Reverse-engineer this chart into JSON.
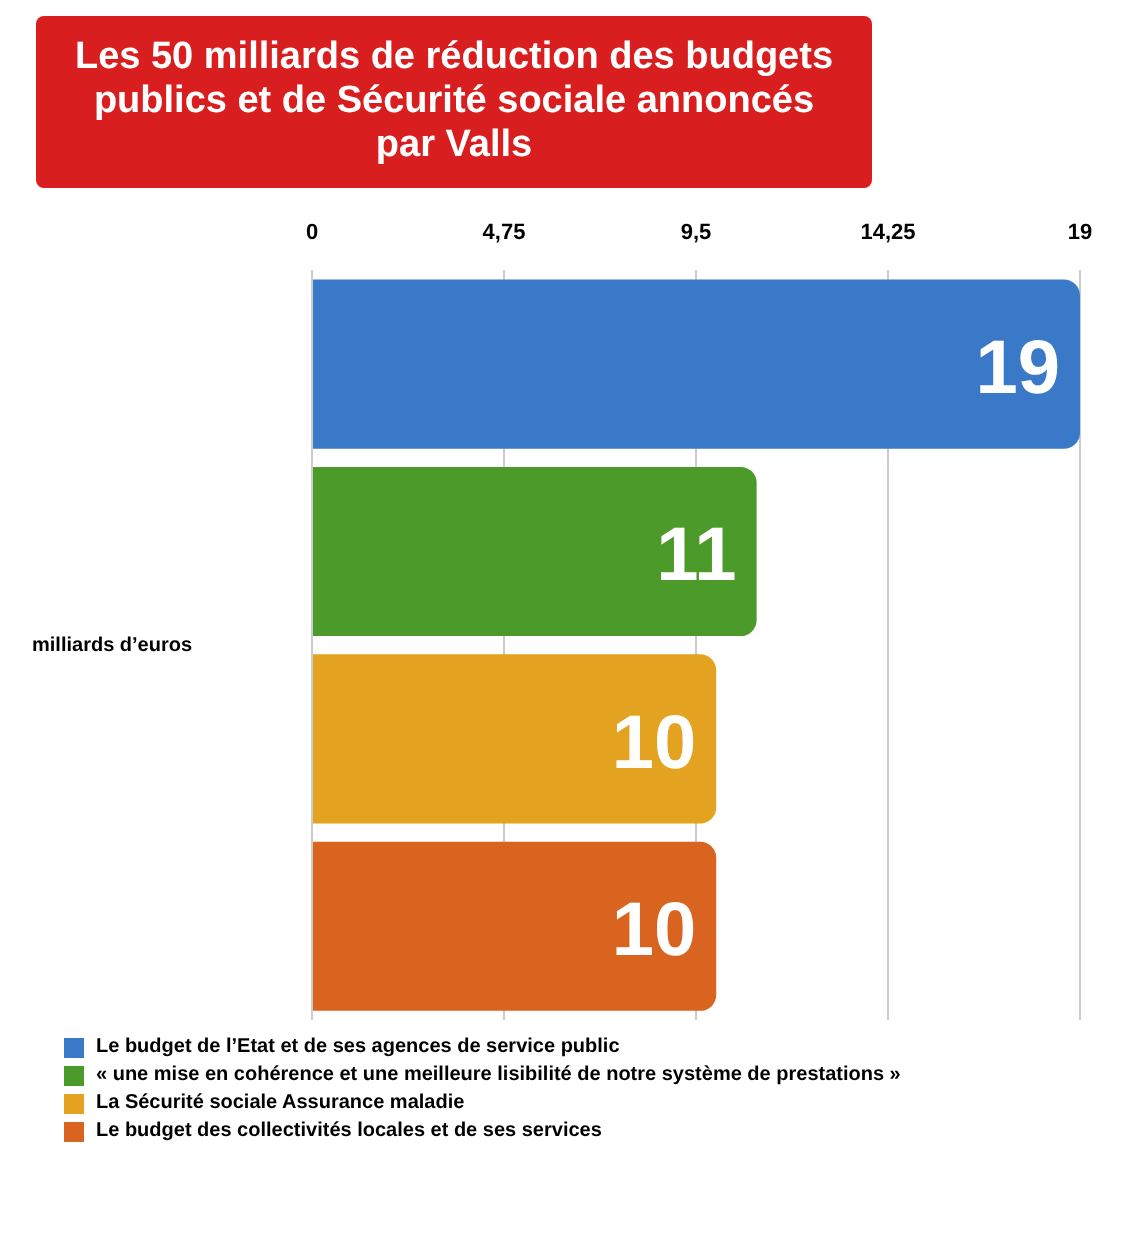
{
  "chart_data": {
    "type": "bar",
    "orientation": "horizontal",
    "title": "Les 50 milliards de réduction des budgets publics et de Sécurité sociale annoncés par Valls",
    "annotations": [
      "milliards d’euros"
    ],
    "categories": [
      null,
      null,
      null,
      null
    ],
    "series": [
      {
        "name": "Le budget de l’Etat et de ses agences de service public",
        "color": "#3a78c8",
        "values": [
          19,
          null,
          null,
          null
        ]
      },
      {
        "name": "« une mise en cohérence et une meilleure lisibilité de notre système de prestations »",
        "color": "#4c9a2a",
        "values": [
          null,
          11,
          null,
          null
        ]
      },
      {
        "name": "La Sécurité sociale Assurance maladie",
        "color": "#e3a21f",
        "values": [
          null,
          null,
          10,
          null
        ]
      },
      {
        "name": "Le budget des collectivités locales et de ses services",
        "color": "#d9641f",
        "values": [
          null,
          null,
          null,
          10
        ]
      }
    ],
    "xlim": [
      0,
      19
    ],
    "xticks": [
      0,
      {
        "value": 4.75,
        "label": "4,75"
      },
      {
        "value": 9.5,
        "label": "9,5"
      },
      {
        "value": 14.25,
        "label": "14,25"
      },
      19
    ],
    "grid": "x",
    "data_labels": true,
    "legend": "bottom"
  }
}
